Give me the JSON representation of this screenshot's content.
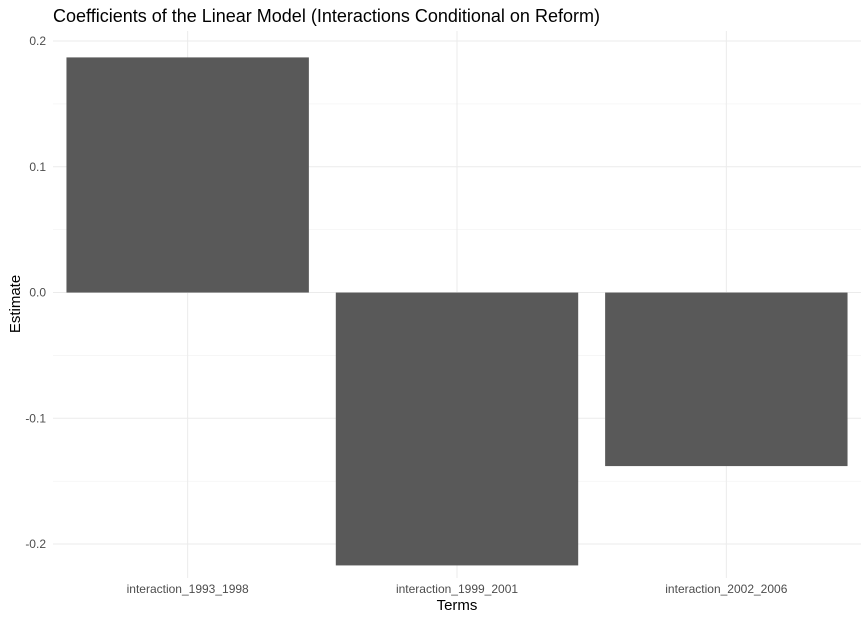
{
  "chart_data": {
    "type": "bar",
    "title": "Coefficients of the Linear Model (Interactions Conditional on Reform)",
    "xlabel": "Terms",
    "ylabel": "Estimate",
    "categories": [
      "interaction_1993_1998",
      "interaction_1999_2001",
      "interaction_2002_2006"
    ],
    "values": [
      0.187,
      -0.217,
      -0.138
    ],
    "ylim": [
      -0.227,
      0.208
    ],
    "yticks": [
      -0.2,
      -0.1,
      0.0,
      0.1,
      0.2
    ],
    "ytick_labels": [
      "-0.2",
      "-0.1",
      "0.0",
      "0.1",
      "0.2"
    ],
    "grid": true,
    "bar_color": "#595959"
  }
}
